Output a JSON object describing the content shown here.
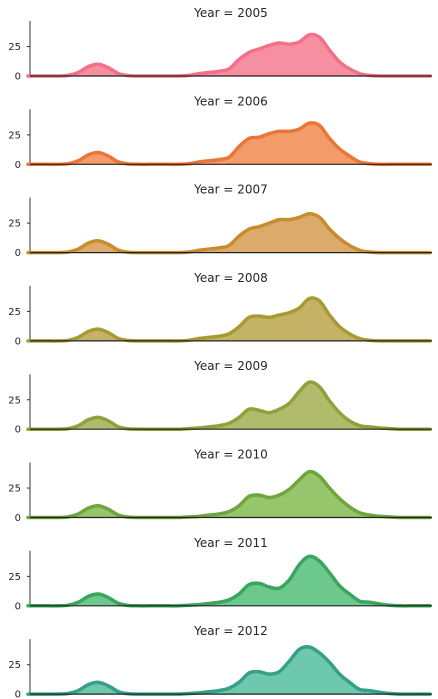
{
  "chart_data": {
    "type": "area",
    "layout": "ridge plot, one panel per facet stacked vertically",
    "ylim": [
      0,
      45
    ],
    "yticks": [
      0,
      25
    ],
    "grid": false,
    "x": [
      0,
      1,
      2,
      3,
      4,
      5,
      6,
      7,
      8,
      9,
      10,
      11,
      12,
      13,
      14,
      15,
      16,
      17,
      18,
      19,
      20,
      21,
      22,
      23,
      24,
      25,
      26,
      27,
      28,
      29,
      30,
      31,
      32,
      33,
      34,
      35,
      36,
      37,
      38,
      39,
      40
    ],
    "panels": [
      {
        "title": "Year = 2005",
        "color": "#f2708a",
        "fill": "#f68fa2",
        "values": [
          0,
          0,
          0,
          0,
          0.5,
          3,
          8,
          10,
          7,
          2,
          0.3,
          0,
          0,
          0,
          0,
          0,
          0.5,
          2,
          3,
          4,
          6,
          14,
          20,
          23,
          26,
          28,
          27,
          29,
          35,
          33,
          22,
          12,
          6,
          2,
          0.5,
          0,
          0,
          0,
          0,
          0,
          0
        ]
      },
      {
        "title": "Year = 2006",
        "color": "#ea7538",
        "fill": "#f49b6b",
        "values": [
          0,
          0,
          0,
          0,
          0.5,
          3,
          8,
          10,
          7,
          2,
          0.3,
          0,
          0,
          0,
          0,
          0,
          0.5,
          2,
          3,
          4,
          6,
          15,
          22,
          23,
          26,
          28,
          28,
          30,
          35,
          33,
          22,
          13,
          7,
          2,
          0.5,
          0,
          0,
          0,
          0,
          0,
          0
        ]
      },
      {
        "title": "Year = 2007",
        "color": "#c88b2e",
        "fill": "#dcab6c",
        "values": [
          0,
          0,
          0,
          0,
          0.5,
          3,
          8,
          10,
          7,
          2,
          0.3,
          0,
          0,
          0,
          0,
          0,
          0.5,
          2,
          3,
          4,
          6,
          14,
          20,
          22,
          25,
          28,
          28,
          30,
          33,
          30,
          20,
          12,
          6,
          2,
          0.5,
          0,
          0,
          0,
          0,
          0,
          0
        ]
      },
      {
        "title": "Year = 2008",
        "color": "#a89a32",
        "fill": "#c4b366",
        "values": [
          0,
          0,
          0,
          0,
          0.5,
          3,
          8,
          10,
          7,
          2,
          0.3,
          0,
          0,
          0,
          0,
          0,
          0.5,
          2,
          3,
          4,
          6,
          12,
          20,
          21,
          20,
          22,
          24,
          28,
          36,
          34,
          22,
          12,
          6,
          2,
          0.5,
          0,
          0,
          0,
          0,
          0,
          0
        ]
      },
      {
        "title": "Year = 2009",
        "color": "#8fa13b",
        "fill": "#b0bc6c",
        "values": [
          0,
          0,
          0,
          0,
          0.5,
          3,
          8,
          10,
          7,
          2,
          0.3,
          0,
          0,
          0,
          0,
          0,
          0.5,
          1,
          2,
          3,
          5,
          10,
          17,
          16,
          14,
          17,
          22,
          32,
          40,
          36,
          24,
          14,
          7,
          3,
          2,
          1,
          0.5,
          0,
          0,
          0,
          0
        ]
      },
      {
        "title": "Year = 2010",
        "color": "#6da53e",
        "fill": "#96c56b",
        "values": [
          0,
          0,
          0,
          0,
          0.5,
          3,
          8,
          10,
          7,
          2,
          0.3,
          0,
          0,
          0,
          0,
          0,
          0.5,
          1,
          2,
          3,
          5,
          10,
          18,
          19,
          17,
          19,
          24,
          32,
          39,
          35,
          25,
          16,
          9,
          4,
          2,
          1,
          0.5,
          0,
          0,
          0,
          0
        ]
      },
      {
        "title": "Year = 2011",
        "color": "#3aa55e",
        "fill": "#6dc88e",
        "values": [
          0,
          0,
          0,
          0,
          0.5,
          3,
          8,
          10,
          7,
          2,
          0.3,
          0,
          0,
          0,
          0,
          0,
          0.5,
          1,
          2,
          3,
          5,
          10,
          18,
          19,
          16,
          15,
          22,
          35,
          42,
          38,
          28,
          17,
          10,
          4,
          3,
          1.5,
          0.5,
          0,
          0,
          0,
          0
        ]
      },
      {
        "title": "Year = 2012",
        "color": "#35a087",
        "fill": "#6ec8ad",
        "values": [
          0,
          0,
          0,
          0,
          0.5,
          3,
          8,
          10,
          7,
          2,
          0.3,
          0,
          0,
          0,
          0,
          0,
          0.5,
          1,
          2,
          3,
          5,
          10,
          18,
          19,
          17,
          19,
          28,
          38,
          40,
          35,
          27,
          17,
          10,
          4,
          3,
          1.5,
          0.5,
          0,
          0,
          0,
          0
        ]
      }
    ]
  }
}
